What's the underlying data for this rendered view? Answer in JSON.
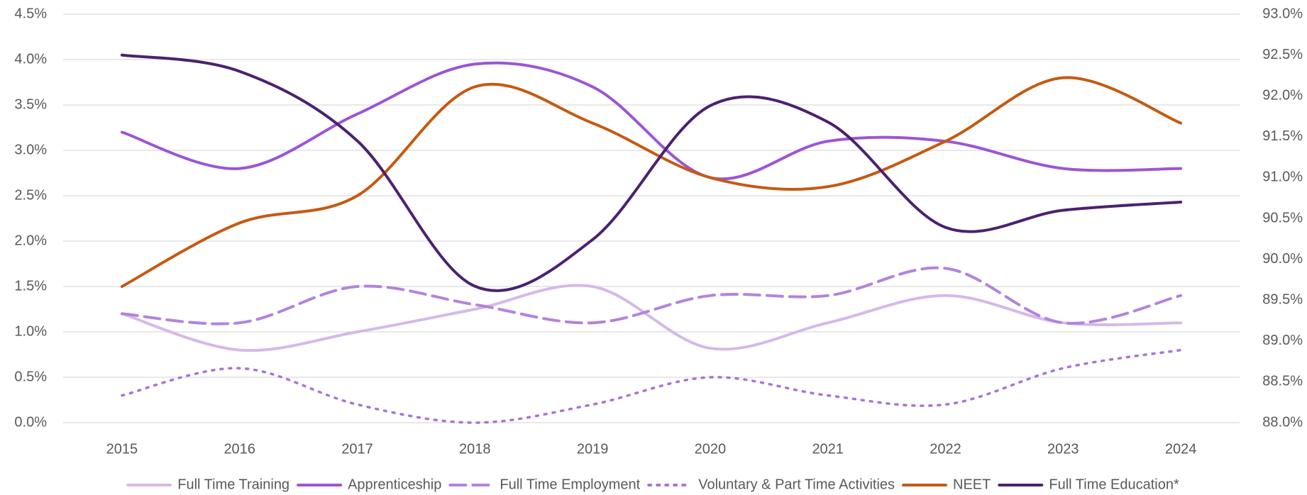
{
  "chart_data": {
    "type": "line",
    "categories": [
      "2015",
      "2016",
      "2017",
      "2018",
      "2019",
      "2020",
      "2021",
      "2022",
      "2023",
      "2024"
    ],
    "series": [
      {
        "name": "Full Time Training",
        "color": "#d5b9ea",
        "style": "solid",
        "values": [
          1.2,
          0.8,
          1.0,
          1.25,
          1.5,
          0.82,
          1.1,
          1.4,
          1.1,
          1.1
        ]
      },
      {
        "name": "Apprenticeship",
        "color": "#9c55d3",
        "style": "solid",
        "values": [
          3.2,
          2.8,
          3.4,
          3.95,
          3.7,
          2.7,
          3.1,
          3.1,
          2.8,
          2.8
        ]
      },
      {
        "name": "Full Time Employment",
        "color": "#b383dd",
        "style": "dashed",
        "values": [
          1.2,
          1.1,
          1.5,
          1.3,
          1.1,
          1.4,
          1.4,
          1.7,
          1.1,
          1.4
        ]
      },
      {
        "name": "Voluntary & Part Time Activities",
        "color": "#aa72d6",
        "style": "dotted",
        "values": [
          0.3,
          0.6,
          0.2,
          0.0,
          0.2,
          0.5,
          0.3,
          0.2,
          0.6,
          0.8
        ]
      },
      {
        "name": "NEET",
        "color": "#c55a11",
        "style": "solid",
        "values": [
          1.5,
          2.2,
          2.5,
          3.7,
          3.3,
          2.7,
          2.6,
          3.1,
          3.8,
          3.3
        ]
      },
      {
        "name": "Full Time Education*",
        "color": "#4b2170",
        "style": "solid",
        "axis": "y2",
        "values": [
          92.5,
          92.3,
          91.45,
          89.67,
          90.24,
          91.88,
          91.68,
          90.39,
          90.6,
          90.7
        ]
      }
    ],
    "ylim": [
      0,
      4.5
    ],
    "yticks": [
      {
        "value": 0,
        "label": "0.0%"
      },
      {
        "value": 0.5,
        "label": "0.5%"
      },
      {
        "value": 1,
        "label": "1.0%"
      },
      {
        "value": 1.5,
        "label": "1.5%"
      },
      {
        "value": 2,
        "label": "2.0%"
      },
      {
        "value": 2.5,
        "label": "2.5%"
      },
      {
        "value": 3,
        "label": "3.0%"
      },
      {
        "value": 3.5,
        "label": "3.5%"
      },
      {
        "value": 4,
        "label": "4.0%"
      },
      {
        "value": 4.5,
        "label": "4.5%"
      }
    ],
    "y2lim": [
      88,
      93
    ],
    "y2ticks": [
      {
        "value": 88,
        "label": "88.0%"
      },
      {
        "value": 88.5,
        "label": "88.5%"
      },
      {
        "value": 89,
        "label": "89.0%"
      },
      {
        "value": 89.5,
        "label": "89.5%"
      },
      {
        "value": 90,
        "label": "90.0%"
      },
      {
        "value": 90.5,
        "label": "90.5%"
      },
      {
        "value": 91,
        "label": "91.0%"
      },
      {
        "value": 91.5,
        "label": "91.5%"
      },
      {
        "value": 92,
        "label": "92.0%"
      },
      {
        "value": 92.5,
        "label": "92.5%"
      },
      {
        "value": 93,
        "label": "93.0%"
      }
    ],
    "grid": true,
    "legend": "bottom"
  }
}
